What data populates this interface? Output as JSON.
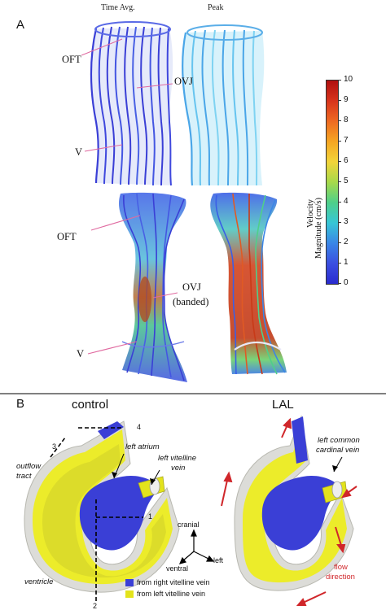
{
  "panel_a": {
    "letter": "A",
    "col_time_avg": "Time Avg.",
    "col_peak": "Peak",
    "labels": {
      "oft_top": "OFT",
      "ovj_top": "OVJ",
      "v_top": "V",
      "oft_bottom": "OFT",
      "ovj_bottom_1": "OVJ",
      "ovj_bottom_2": "(banded)",
      "v_bottom": "V"
    },
    "colorbar": {
      "title_1": "Velocity",
      "title_2": "Magnitude (cm/s)",
      "ticks": [
        "10",
        "9",
        "8",
        "7",
        "6",
        "5",
        "4",
        "3",
        "2",
        "1",
        "0"
      ],
      "colors": [
        "#b01010",
        "#d8341c",
        "#ee6a22",
        "#f5a623",
        "#f2d43a",
        "#a7d94a",
        "#4fcf8a",
        "#37c6d6",
        "#3a86e6",
        "#3b4fe0",
        "#2a2bcf"
      ]
    }
  },
  "panel_b": {
    "letter": "B",
    "title_control": "control",
    "title_lal": "LAL",
    "labels": {
      "outflow_tract_1": "outflow",
      "outflow_tract_2": "tract",
      "ventricle": "ventricle",
      "left_atrium": "left atrium",
      "left_vitelline_vein_1": "left vitelline",
      "left_vitelline_vein_2": "vein",
      "left_common_cardinal_1": "left common",
      "left_common_cardinal_2": "cardinal vein",
      "flow_direction_1": "flow",
      "flow_direction_2": "direction"
    },
    "cut_numbers": [
      "1",
      "2",
      "3",
      "4"
    ],
    "axes": {
      "cranial": "cranial",
      "left": "left",
      "ventral": "ventral"
    },
    "legend": {
      "right_vitelline": "from right vitelline vein",
      "left_vitelline": "from left vitelline vein",
      "right_color": "#3a3fd6",
      "left_color": "#e3e31c"
    },
    "flow_color": "#d0262a"
  }
}
